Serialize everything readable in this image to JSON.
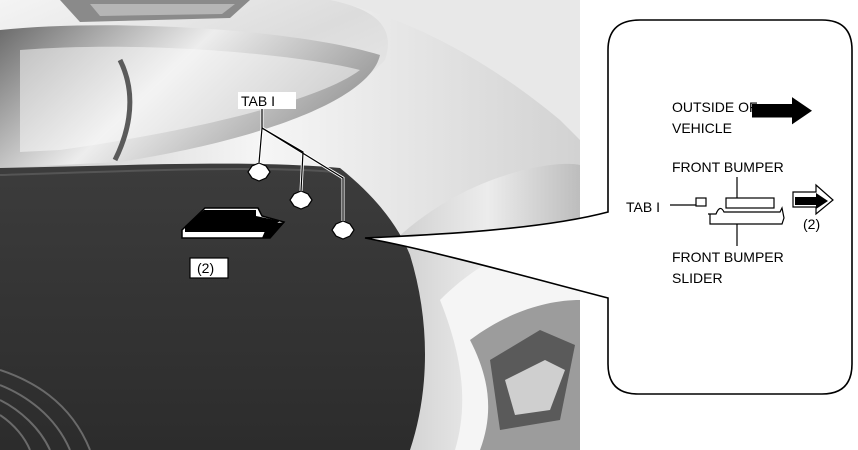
{
  "callouts": {
    "tab_label": "TAB I",
    "direction_label": "(2)"
  },
  "detail": {
    "outside_label_line1": "OUTSIDE OF",
    "outside_label_line2": "VEHICLE",
    "front_bumper_label": "FRONT BUMPER",
    "tab_label": "TAB I",
    "direction_label": "(2)",
    "slider_label_line1": "FRONT BUMPER",
    "slider_label_line2": "SLIDER"
  }
}
